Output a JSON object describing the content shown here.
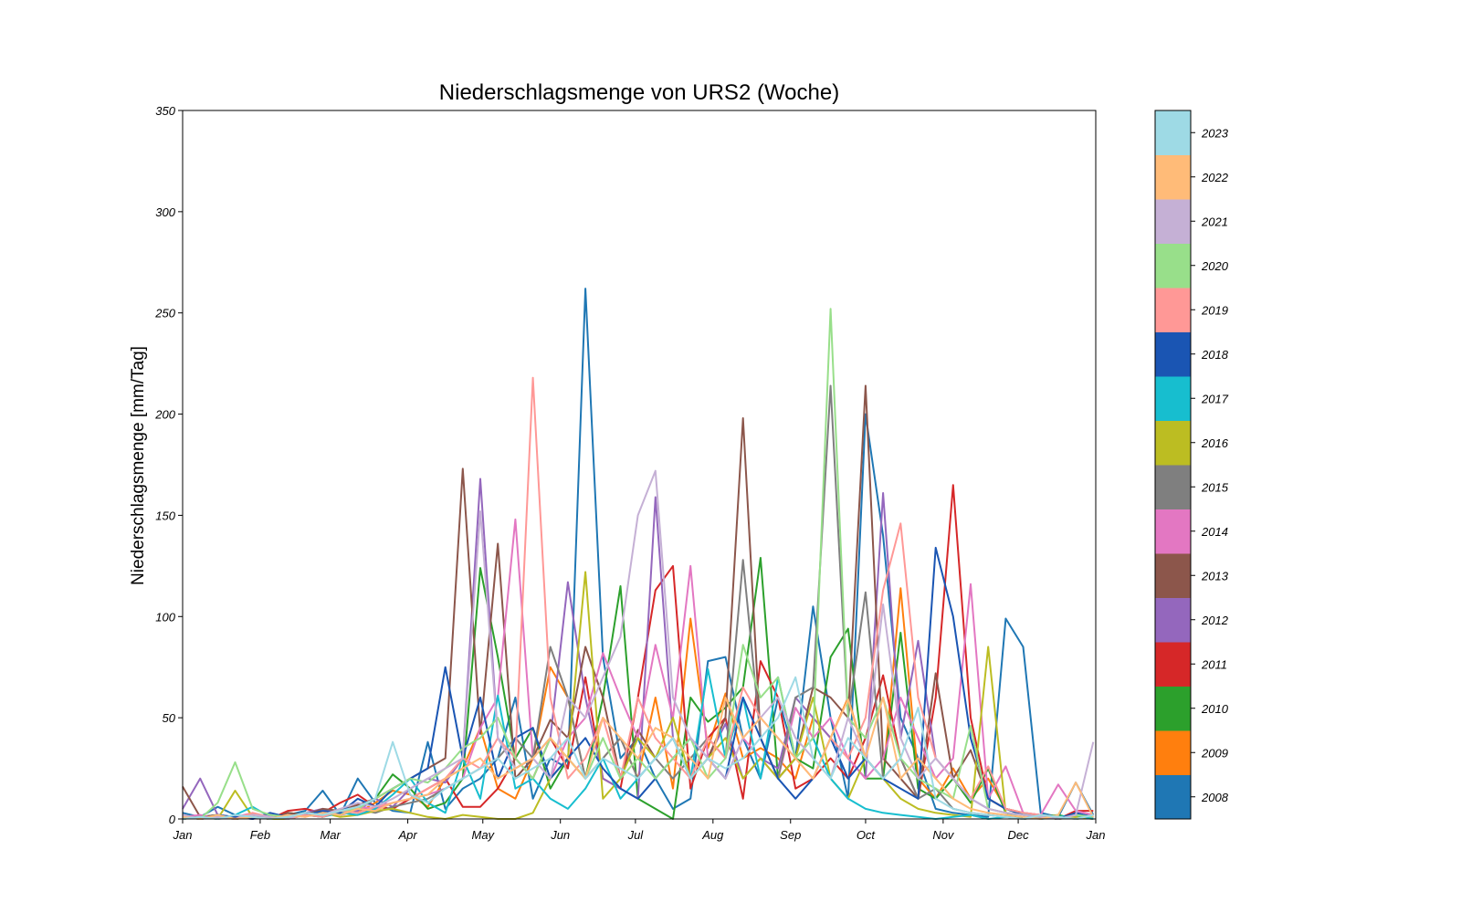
{
  "chart_data": {
    "type": "line",
    "title": "Niederschlagsmenge von URS2 (Woche)",
    "xlabel": "",
    "ylabel": "Niederschlagsmenge [mm/Tag]",
    "ylim": [
      0,
      350
    ],
    "yticks": [
      0,
      50,
      100,
      150,
      200,
      250,
      300,
      350
    ],
    "xlim": [
      0,
      365
    ],
    "xticks": [
      {
        "label": "Jan",
        "day": 0
      },
      {
        "label": "Feb",
        "day": 31
      },
      {
        "label": "Mar",
        "day": 59
      },
      {
        "label": "Apr",
        "day": 90
      },
      {
        "label": "May",
        "day": 120
      },
      {
        "label": "Jun",
        "day": 151
      },
      {
        "label": "Jul",
        "day": 181
      },
      {
        "label": "Aug",
        "day": 212
      },
      {
        "label": "Sep",
        "day": 243
      },
      {
        "label": "Oct",
        "day": 273
      },
      {
        "label": "Nov",
        "day": 304
      },
      {
        "label": "Dec",
        "day": 334
      },
      {
        "label": "Jan",
        "day": 365
      }
    ],
    "grid": false,
    "legend": "colorbar-right",
    "week_days": [
      0,
      7,
      14,
      21,
      28,
      35,
      42,
      49,
      56,
      63,
      70,
      77,
      84,
      91,
      98,
      105,
      112,
      119,
      126,
      133,
      140,
      147,
      154,
      161,
      168,
      175,
      182,
      189,
      196,
      203,
      210,
      217,
      224,
      231,
      238,
      245,
      252,
      259,
      266,
      273,
      280,
      287,
      294,
      301,
      308,
      315,
      322,
      329,
      336,
      343,
      350,
      357,
      364
    ],
    "series": [
      {
        "name": "2008",
        "color": "#1f77b4",
        "values": [
          3,
          1,
          6,
          2,
          1,
          0,
          2,
          4,
          14,
          2,
          20,
          8,
          4,
          3,
          38,
          5,
          15,
          20,
          30,
          60,
          10,
          30,
          25,
          262,
          80,
          30,
          40,
          20,
          5,
          10,
          78,
          80,
          40,
          20,
          60,
          30,
          105,
          50,
          10,
          200,
          140,
          50,
          30,
          5,
          3,
          2,
          1,
          99,
          85,
          3,
          1,
          18,
          2
        ]
      },
      {
        "name": "2009",
        "color": "#ff7f0e",
        "values": [
          1,
          0,
          2,
          0,
          1,
          2,
          0,
          3,
          2,
          5,
          3,
          8,
          14,
          12,
          6,
          20,
          25,
          45,
          15,
          10,
          30,
          75,
          60,
          20,
          30,
          40,
          20,
          60,
          15,
          99,
          35,
          62,
          30,
          35,
          30,
          20,
          50,
          40,
          60,
          30,
          20,
          114,
          20,
          10,
          25,
          10,
          20,
          5,
          3,
          1,
          0,
          2,
          1
        ]
      },
      {
        "name": "2010",
        "color": "#2ca02c",
        "values": [
          0,
          1,
          2,
          0,
          1,
          0,
          3,
          2,
          1,
          4,
          6,
          10,
          22,
          15,
          5,
          8,
          20,
          124,
          80,
          30,
          45,
          15,
          30,
          20,
          60,
          115,
          10,
          5,
          0,
          60,
          48,
          55,
          65,
          129,
          20,
          30,
          25,
          80,
          94,
          20,
          20,
          92,
          15,
          10,
          20,
          8,
          25,
          3,
          0,
          1,
          2,
          0,
          1
        ]
      },
      {
        "name": "2011",
        "color": "#d62728",
        "values": [
          2,
          0,
          1,
          1,
          2,
          0,
          4,
          5,
          3,
          8,
          12,
          6,
          5,
          10,
          15,
          20,
          6,
          6,
          15,
          30,
          20,
          40,
          25,
          70,
          20,
          15,
          60,
          113,
          125,
          15,
          40,
          50,
          10,
          78,
          60,
          15,
          20,
          30,
          20,
          40,
          71,
          30,
          10,
          60,
          165,
          50,
          10,
          5,
          3,
          2,
          0,
          4,
          4
        ]
      },
      {
        "name": "2012",
        "color": "#9467bd",
        "values": [
          5,
          20,
          2,
          1,
          0,
          2,
          1,
          3,
          5,
          2,
          4,
          10,
          6,
          15,
          20,
          18,
          30,
          168,
          40,
          25,
          30,
          40,
          117,
          60,
          20,
          15,
          10,
          159,
          40,
          20,
          30,
          47,
          20,
          30,
          25,
          60,
          50,
          40,
          30,
          20,
          161,
          40,
          88,
          30,
          20,
          10,
          5,
          3,
          2,
          1,
          0,
          1,
          0
        ]
      },
      {
        "name": "2013",
        "color": "#8c564b",
        "values": [
          16,
          1,
          2,
          0,
          1,
          0,
          3,
          2,
          5,
          4,
          7,
          10,
          15,
          20,
          25,
          30,
          173,
          42,
          136,
          20,
          30,
          49,
          40,
          85,
          60,
          20,
          44,
          30,
          40,
          20,
          30,
          50,
          198,
          40,
          20,
          30,
          65,
          60,
          50,
          214,
          30,
          20,
          10,
          72,
          20,
          34,
          10,
          5,
          3,
          1,
          0,
          2,
          1
        ]
      },
      {
        "name": "2014",
        "color": "#e377c2",
        "values": [
          1,
          2,
          0,
          1,
          3,
          0,
          2,
          1,
          4,
          3,
          6,
          5,
          8,
          10,
          12,
          15,
          20,
          45,
          60,
          148,
          30,
          20,
          40,
          50,
          82,
          60,
          40,
          86,
          50,
          125,
          30,
          20,
          40,
          30,
          20,
          55,
          40,
          50,
          30,
          20,
          30,
          60,
          40,
          20,
          30,
          116,
          10,
          26,
          3,
          2,
          17,
          4,
          2
        ]
      },
      {
        "name": "2015",
        "color": "#7f7f7f",
        "values": [
          2,
          0,
          1,
          0,
          2,
          1,
          0,
          3,
          2,
          4,
          5,
          3,
          6,
          8,
          10,
          15,
          20,
          25,
          30,
          40,
          30,
          85,
          60,
          20,
          30,
          40,
          20,
          30,
          20,
          30,
          40,
          30,
          128,
          40,
          20,
          60,
          65,
          214,
          50,
          112,
          20,
          30,
          10,
          15,
          5,
          3,
          2,
          1,
          0,
          1,
          0,
          2,
          1
        ]
      },
      {
        "name": "2016",
        "color": "#bcbd22",
        "values": [
          0,
          1,
          0,
          14,
          1,
          0,
          0,
          2,
          3,
          1,
          2,
          4,
          5,
          3,
          1,
          0,
          2,
          1,
          0,
          0,
          3,
          20,
          30,
          122,
          10,
          20,
          40,
          30,
          50,
          20,
          30,
          40,
          20,
          30,
          20,
          30,
          60,
          20,
          10,
          30,
          20,
          10,
          5,
          3,
          2,
          1,
          85,
          3,
          2,
          1,
          0,
          1,
          0
        ]
      },
      {
        "name": "2017",
        "color": "#17becf",
        "values": [
          0,
          1,
          0,
          2,
          6,
          1,
          0,
          2,
          1,
          3,
          2,
          5,
          12,
          20,
          8,
          3,
          30,
          10,
          61,
          15,
          20,
          10,
          5,
          15,
          30,
          10,
          20,
          30,
          40,
          20,
          74,
          30,
          60,
          20,
          70,
          30,
          40,
          20,
          10,
          5,
          3,
          2,
          1,
          0,
          1,
          2,
          0,
          1,
          3,
          0,
          1,
          2,
          0
        ]
      },
      {
        "name": "2018",
        "color": "#1a55b3",
        "values": [
          1,
          0,
          2,
          1,
          0,
          3,
          1,
          2,
          4,
          3,
          10,
          6,
          15,
          20,
          25,
          75,
          30,
          60,
          20,
          40,
          45,
          20,
          30,
          40,
          25,
          15,
          10,
          20,
          30,
          40,
          30,
          20,
          60,
          40,
          20,
          10,
          20,
          40,
          20,
          30,
          20,
          15,
          10,
          134,
          100,
          40,
          10,
          5,
          2,
          1,
          0,
          3,
          1
        ]
      },
      {
        "name": "2019",
        "color": "#ff9896",
        "values": [
          2,
          0,
          1,
          0,
          3,
          1,
          0,
          2,
          1,
          4,
          3,
          6,
          8,
          10,
          15,
          20,
          30,
          25,
          40,
          30,
          218,
          60,
          20,
          30,
          50,
          20,
          60,
          40,
          30,
          20,
          40,
          30,
          65,
          50,
          40,
          30,
          20,
          40,
          30,
          50,
          113,
          146,
          60,
          30,
          20,
          10,
          26,
          5,
          3,
          2,
          1,
          0,
          2
        ]
      },
      {
        "name": "2020",
        "color": "#98df8a",
        "values": [
          1,
          0,
          8,
          28,
          5,
          2,
          1,
          3,
          2,
          4,
          5,
          10,
          15,
          20,
          18,
          25,
          35,
          40,
          50,
          30,
          20,
          40,
          30,
          20,
          40,
          20,
          30,
          20,
          30,
          40,
          20,
          30,
          86,
          60,
          70,
          30,
          40,
          252,
          50,
          40,
          60,
          30,
          20,
          15,
          10,
          46,
          5,
          3,
          2,
          1,
          0,
          2,
          1
        ]
      },
      {
        "name": "2021",
        "color": "#c5b0d5",
        "values": [
          2,
          0,
          1,
          0,
          2,
          1,
          0,
          3,
          2,
          5,
          8,
          6,
          10,
          15,
          20,
          25,
          30,
          152,
          40,
          25,
          30,
          20,
          60,
          50,
          70,
          90,
          150,
          172,
          60,
          40,
          30,
          20,
          40,
          50,
          60,
          40,
          30,
          20,
          50,
          30,
          106,
          40,
          20,
          30,
          20,
          10,
          5,
          3,
          2,
          1,
          0,
          2,
          38
        ]
      },
      {
        "name": "2022",
        "color": "#ffbb78",
        "values": [
          1,
          0,
          2,
          0,
          1,
          0,
          2,
          1,
          3,
          2,
          5,
          4,
          8,
          10,
          12,
          20,
          25,
          30,
          20,
          25,
          30,
          40,
          30,
          20,
          50,
          40,
          30,
          45,
          40,
          30,
          20,
          60,
          40,
          50,
          40,
          30,
          20,
          40,
          59,
          30,
          60,
          20,
          30,
          20,
          10,
          5,
          3,
          2,
          1,
          0,
          2,
          18,
          1
        ]
      },
      {
        "name": "2023",
        "color": "#9edae5",
        "values": [
          0,
          1,
          0,
          2,
          1,
          0,
          1,
          3,
          2,
          4,
          6,
          10,
          38,
          12,
          8,
          15,
          20,
          25,
          30,
          20,
          25,
          30,
          40,
          20,
          30,
          25,
          20,
          30,
          40,
          20,
          30,
          25,
          30,
          40,
          50,
          70,
          30,
          20,
          40,
          30,
          20,
          30,
          55,
          10,
          5,
          3,
          2,
          1,
          0,
          2,
          1,
          0,
          2
        ]
      }
    ]
  }
}
